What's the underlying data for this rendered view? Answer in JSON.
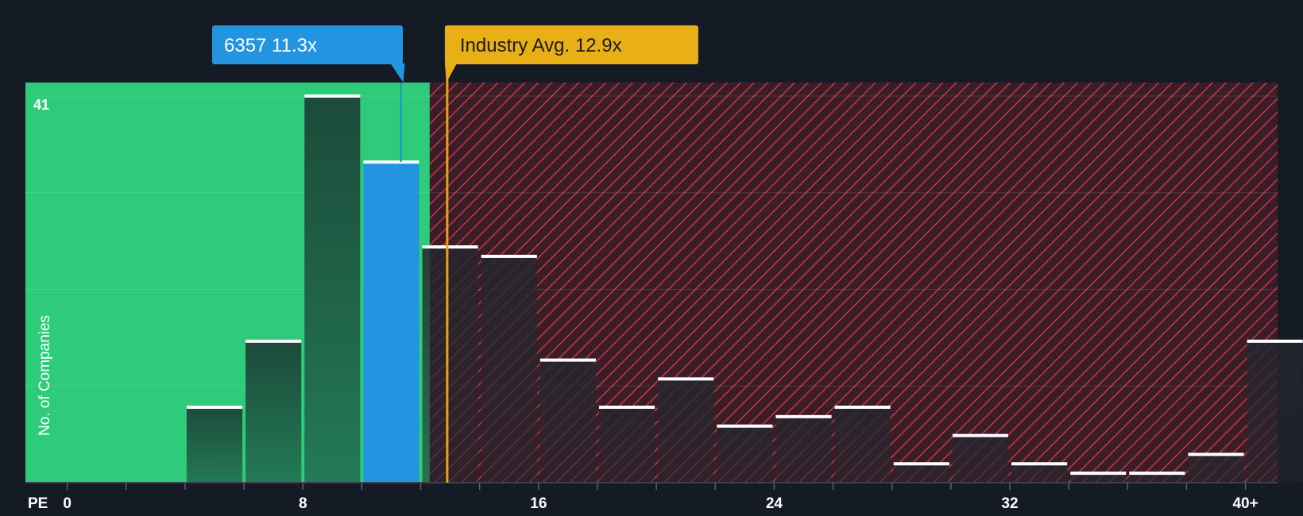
{
  "chart_data": {
    "type": "bar",
    "xlabel": "PE",
    "ylabel": "No. of Companies",
    "y_max_label": "41",
    "ylim": [
      0,
      41
    ],
    "xlim": [
      -1.42,
      41.09
    ],
    "bin_width": 2,
    "x_ticks": [
      {
        "value": 0,
        "label": "0"
      },
      {
        "value": 8,
        "label": "8"
      },
      {
        "value": 16,
        "label": "16"
      },
      {
        "value": 24,
        "label": "24"
      },
      {
        "value": 32,
        "label": "32"
      },
      {
        "value": 40,
        "label": "40+"
      }
    ],
    "bins": [
      {
        "start": 4,
        "value": 8
      },
      {
        "start": 6,
        "value": 15
      },
      {
        "start": 8,
        "value": 41
      },
      {
        "start": 10,
        "value": 34
      },
      {
        "start": 12,
        "value": 25
      },
      {
        "start": 14,
        "value": 24
      },
      {
        "start": 16,
        "value": 13
      },
      {
        "start": 18,
        "value": 8
      },
      {
        "start": 20,
        "value": 11
      },
      {
        "start": 22,
        "value": 6
      },
      {
        "start": 24,
        "value": 7
      },
      {
        "start": 26,
        "value": 8
      },
      {
        "start": 28,
        "value": 2
      },
      {
        "start": 30,
        "value": 5
      },
      {
        "start": 32,
        "value": 2
      },
      {
        "start": 34,
        "value": 1
      },
      {
        "start": 36,
        "value": 1
      },
      {
        "start": 38,
        "value": 3
      },
      {
        "start": 40,
        "value": 15
      }
    ],
    "company": {
      "ticker": "6357",
      "pe": 11.3,
      "label": "6357 11.3x"
    },
    "industry_avg": {
      "pe": 12.9,
      "label": "Industry Avg. 12.9x"
    },
    "colors": {
      "background": "#151b24",
      "undervalued_zone": "#2ecc7a",
      "overvalued_zone": "#3a1d26",
      "hatch": "#c0394b",
      "bar_green_zone": "#1c4a3a",
      "bar_red_zone": "#25232b",
      "company_bar": "#2394e0",
      "company_callout": "#2394e0",
      "industry_callout": "#e8b016",
      "industry_line": "#e8a317",
      "bar_cap": "#ffffff",
      "axis_text": "#ffffff"
    }
  }
}
